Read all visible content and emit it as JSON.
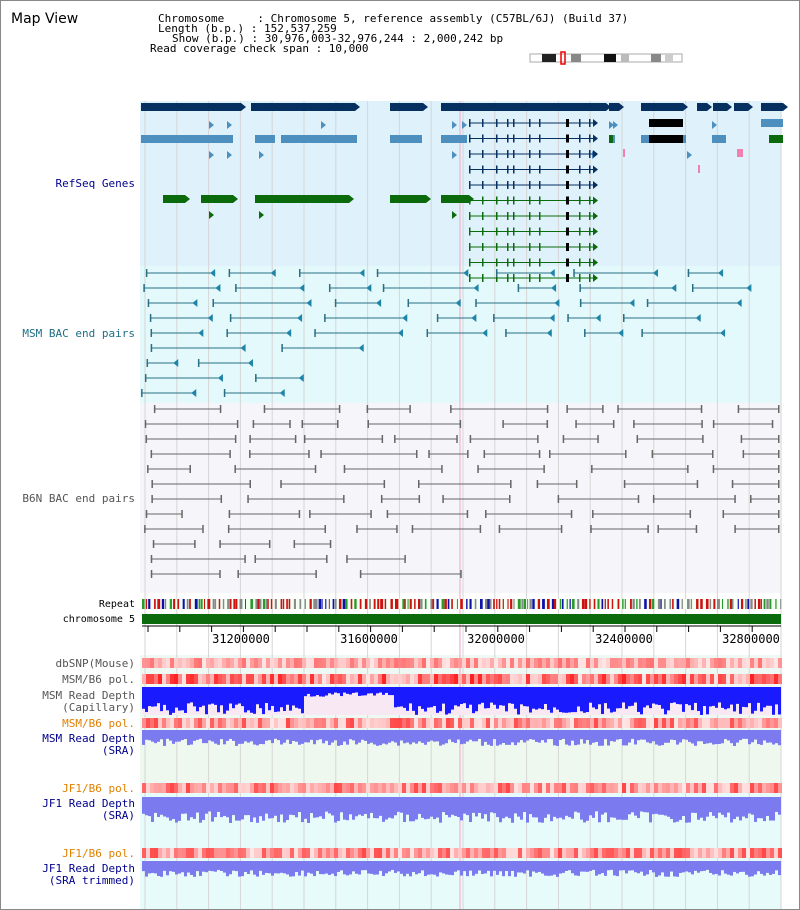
{
  "page": {
    "title": "Map View"
  },
  "info": {
    "chromosome_line": "Chromosome     : Chromosome 5, reference assembly (C57BL/6J) (Build 37)",
    "length_line": "Length (b.p.) : 152,537,259",
    "show_line": "Show (b.p.) : 30,976,003-32,976,244 : 2,000,242 bp",
    "coverage_line": "Read coverage check span : 10,000"
  },
  "tracks": {
    "refseq": "RefSeq Genes",
    "msm_bac": "MSM BAC end pairs",
    "b6n_bac": "B6N BAC end pairs",
    "repeat": "Repeat",
    "chromosome": "chromosome 5",
    "dbsnp": "dbSNP(Mouse)",
    "msm_b6_pol": "MSM/B6 pol.",
    "msm_depth_cap_1": "MSM Read Depth",
    "msm_depth_cap_2": "(Capillary)",
    "msm_b6_pol_2": "MSM/B6 pol.",
    "msm_depth_sra_1": "MSM Read Depth",
    "msm_depth_sra_2": "(SRA)",
    "jf1_b6_pol": "JF1/B6 pol.",
    "jf1_depth_sra_1": "JF1 Read Depth",
    "jf1_depth_sra_2": "(SRA)",
    "jf1_b6_pol_2": "JF1/B6 pol.",
    "jf1_depth_trim_1": "JF1 Read Depth",
    "jf1_depth_trim_2": "(SRA trimmed)"
  },
  "axis": {
    "ticks": [
      "31200000",
      "31600000",
      "32000000",
      "32400000",
      "32800000"
    ]
  },
  "colors": {
    "refseq_bg": "#dff1fb",
    "msm_bg": "#e3f9fb",
    "b6n_bg": "#f6f6fa",
    "navy": "#063060",
    "steel": "#4d8fbf",
    "green": "#0b6a0b",
    "teal": "#2a6f85",
    "gray": "#666666",
    "blue_depth": "#1a1aff",
    "lav_depth": "#7b7bef",
    "orange_label": "#e08000",
    "navy_label": "#00008b"
  }
}
